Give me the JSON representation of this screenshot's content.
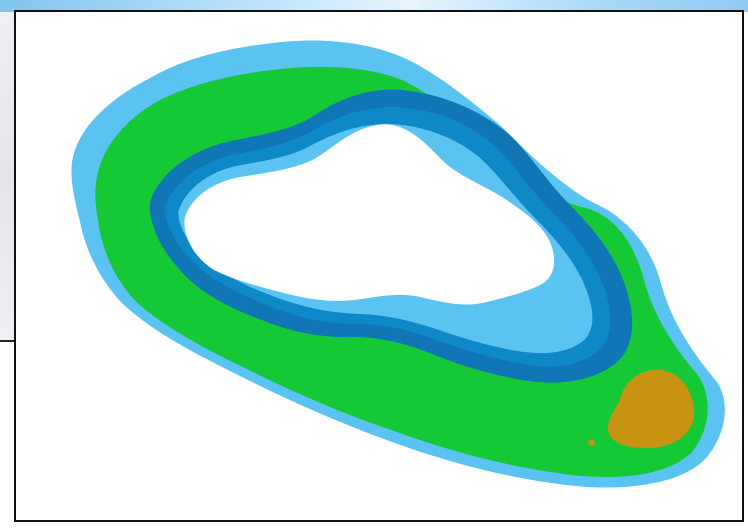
{
  "map": {
    "zones": [
      {
        "name": "outer-fringe",
        "color": "#5bc3f2"
      },
      {
        "name": "outer-ring",
        "color": "#15c835"
      },
      {
        "name": "inner-dark-band",
        "color": "#1176b6"
      },
      {
        "name": "inner-mid-band",
        "color": "#0f88c8"
      },
      {
        "name": "inner-light-band",
        "color": "#5bc3f2"
      },
      {
        "name": "center",
        "color": "#ffffff"
      },
      {
        "name": "patch",
        "color": "#c89312"
      }
    ]
  }
}
